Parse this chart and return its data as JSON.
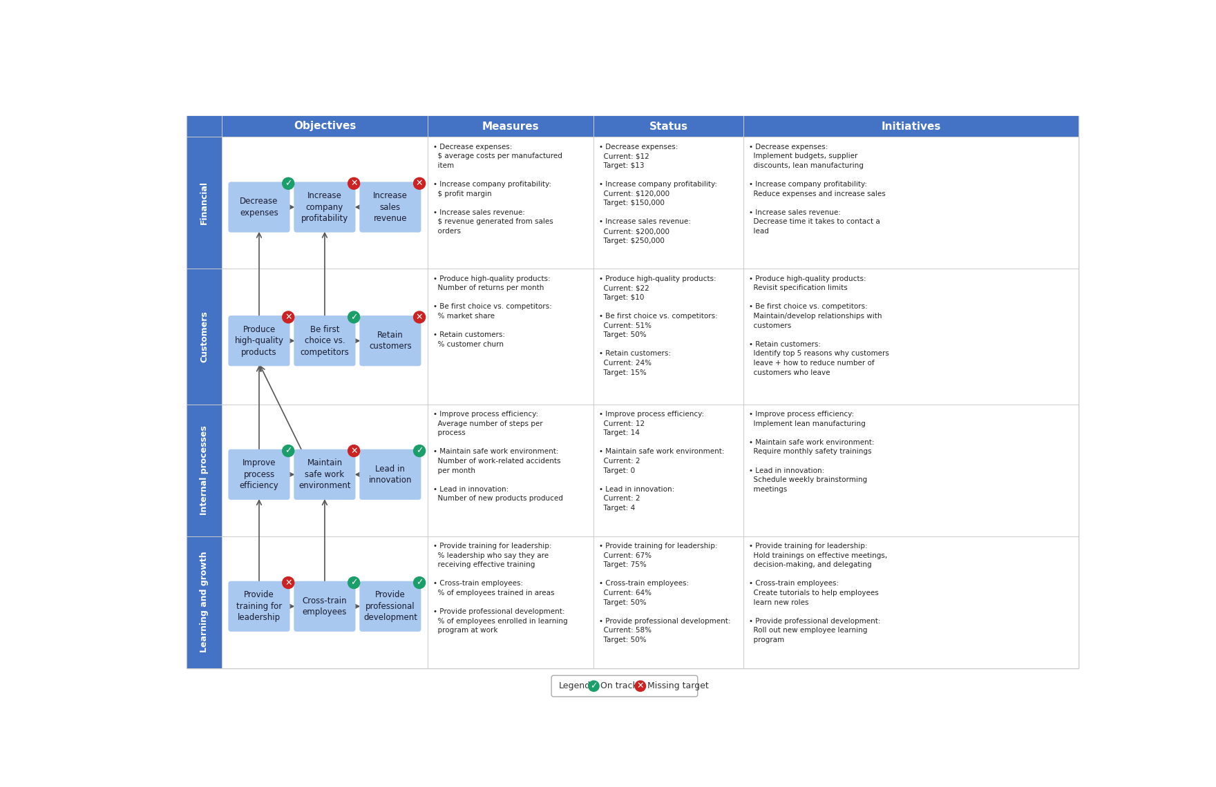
{
  "col_headers": [
    "Objectives",
    "Measures",
    "Status",
    "Initiatives"
  ],
  "header_bg": "#4472C4",
  "header_text": "#FFFFFF",
  "row_label_bg": "#4472C4",
  "row_label_text": "#FFFFFF",
  "box_color": "#A8C8F0",
  "on_track_color": "#1A9E6A",
  "missing_color": "#CC2222",
  "rows": [
    {
      "label": "Financial",
      "objectives": [
        {
          "text": "Decrease\nexpenses",
          "status": "on_track"
        },
        {
          "text": "Increase\ncompany\nprofitability",
          "status": "missing"
        },
        {
          "text": "Increase\nsales\nrevenue",
          "status": "missing"
        }
      ],
      "arrows": [
        [
          0,
          1
        ],
        [
          2,
          1
        ]
      ],
      "measures": "• Decrease expenses:\n  $ average costs per manufactured\n  item\n\n• Increase company profitability:\n  $ profit margin\n\n• Increase sales revenue:\n  $ revenue generated from sales\n  orders",
      "status_text": "• Decrease expenses:\n  Current: $12\n  Target: $13\n\n• Increase company profitability:\n  Current: $120,000\n  Target: $150,000\n\n• Increase sales revenue:\n  Current: $200,000\n  Target: $250,000",
      "initiatives_text": "• Decrease expenses:\n  Implement budgets, supplier\n  discounts, lean manufacturing\n\n• Increase company profitability:\n  Reduce expenses and increase sales\n\n• Increase sales revenue:\n  Decrease time it takes to contact a\n  lead"
    },
    {
      "label": "Customers",
      "objectives": [
        {
          "text": "Produce\nhigh-quality\nproducts",
          "status": "missing"
        },
        {
          "text": "Be first\nchoice vs.\ncompetitors",
          "status": "on_track"
        },
        {
          "text": "Retain\ncustomers",
          "status": "missing"
        }
      ],
      "arrows": [
        [
          0,
          1
        ],
        [
          1,
          2
        ]
      ],
      "measures": "• Produce high-quality products:\n  Number of returns per month\n\n• Be first choice vs. competitors:\n  % market share\n\n• Retain customers:\n  % customer churn",
      "status_text": "• Produce high-quality products:\n  Current: $22\n  Target: $10\n\n• Be first choice vs. competitors:\n  Current: 51%\n  Target: 50%\n\n• Retain customers:\n  Current: 24%\n  Target: 15%",
      "initiatives_text": "• Produce high-quality products:\n  Revisit specification limits\n\n• Be first choice vs. competitors:\n  Maintain/develop relationships with\n  customers\n\n• Retain customers:\n  Identify top 5 reasons why customers\n  leave + how to reduce number of\n  customers who leave"
    },
    {
      "label": "Internal processes",
      "objectives": [
        {
          "text": "Improve\nprocess\nefficiency",
          "status": "on_track"
        },
        {
          "text": "Maintain\nsafe work\nenvironment",
          "status": "missing"
        },
        {
          "text": "Lead in\ninnovation",
          "status": "on_track"
        }
      ],
      "arrows": [
        [
          0,
          1
        ],
        [
          2,
          1
        ]
      ],
      "measures": "• Improve process efficiency:\n  Average number of steps per\n  process\n\n• Maintain safe work environment:\n  Number of work-related accidents\n  per month\n\n• Lead in innovation:\n  Number of new products produced",
      "status_text": "• Improve process efficiency:\n  Current: 12\n  Target: 14\n\n• Maintain safe work environment:\n  Current: 2\n  Target: 0\n\n• Lead in innovation:\n  Current: 2\n  Target: 4",
      "initiatives_text": "• Improve process efficiency:\n  Implement lean manufacturing\n\n• Maintain safe work environment:\n  Require monthly safety trainings\n\n• Lead in innovation:\n  Schedule weekly brainstorming\n  meetings"
    },
    {
      "label": "Learning and growth",
      "objectives": [
        {
          "text": "Provide\ntraining for\nleadership",
          "status": "missing"
        },
        {
          "text": "Cross-train\nemployees",
          "status": "on_track"
        },
        {
          "text": "Provide\nprofessional\ndevelopment",
          "status": "on_track"
        }
      ],
      "arrows": [
        [
          0,
          1
        ],
        [
          1,
          2
        ]
      ],
      "measures": "• Provide training for leadership:\n  % leadership who say they are\n  receiving effective training\n\n• Cross-train employees:\n  % of employees trained in areas\n\n• Provide professional development:\n  % of employees enrolled in learning\n  program at work",
      "status_text": "• Provide training for leadership:\n  Current: 67%\n  Target: 75%\n\n• Cross-train employees:\n  Current: 64%\n  Target: 50%\n\n• Provide professional development:\n  Current: 58%\n  Target: 50%",
      "initiatives_text": "• Provide training for leadership:\n  Hold trainings on effective meetings,\n  decision-making, and delegating\n\n• Cross-train employees:\n  Create tutorials to help employees\n  learn new roles\n\n• Provide professional development:\n  Roll out new employee learning\n  program"
    }
  ],
  "vert_arrows": [
    [
      3,
      0,
      2,
      0
    ],
    [
      3,
      1,
      2,
      1
    ],
    [
      2,
      0,
      1,
      0
    ],
    [
      2,
      1,
      1,
      0
    ],
    [
      1,
      0,
      0,
      0
    ],
    [
      1,
      1,
      0,
      1
    ]
  ]
}
